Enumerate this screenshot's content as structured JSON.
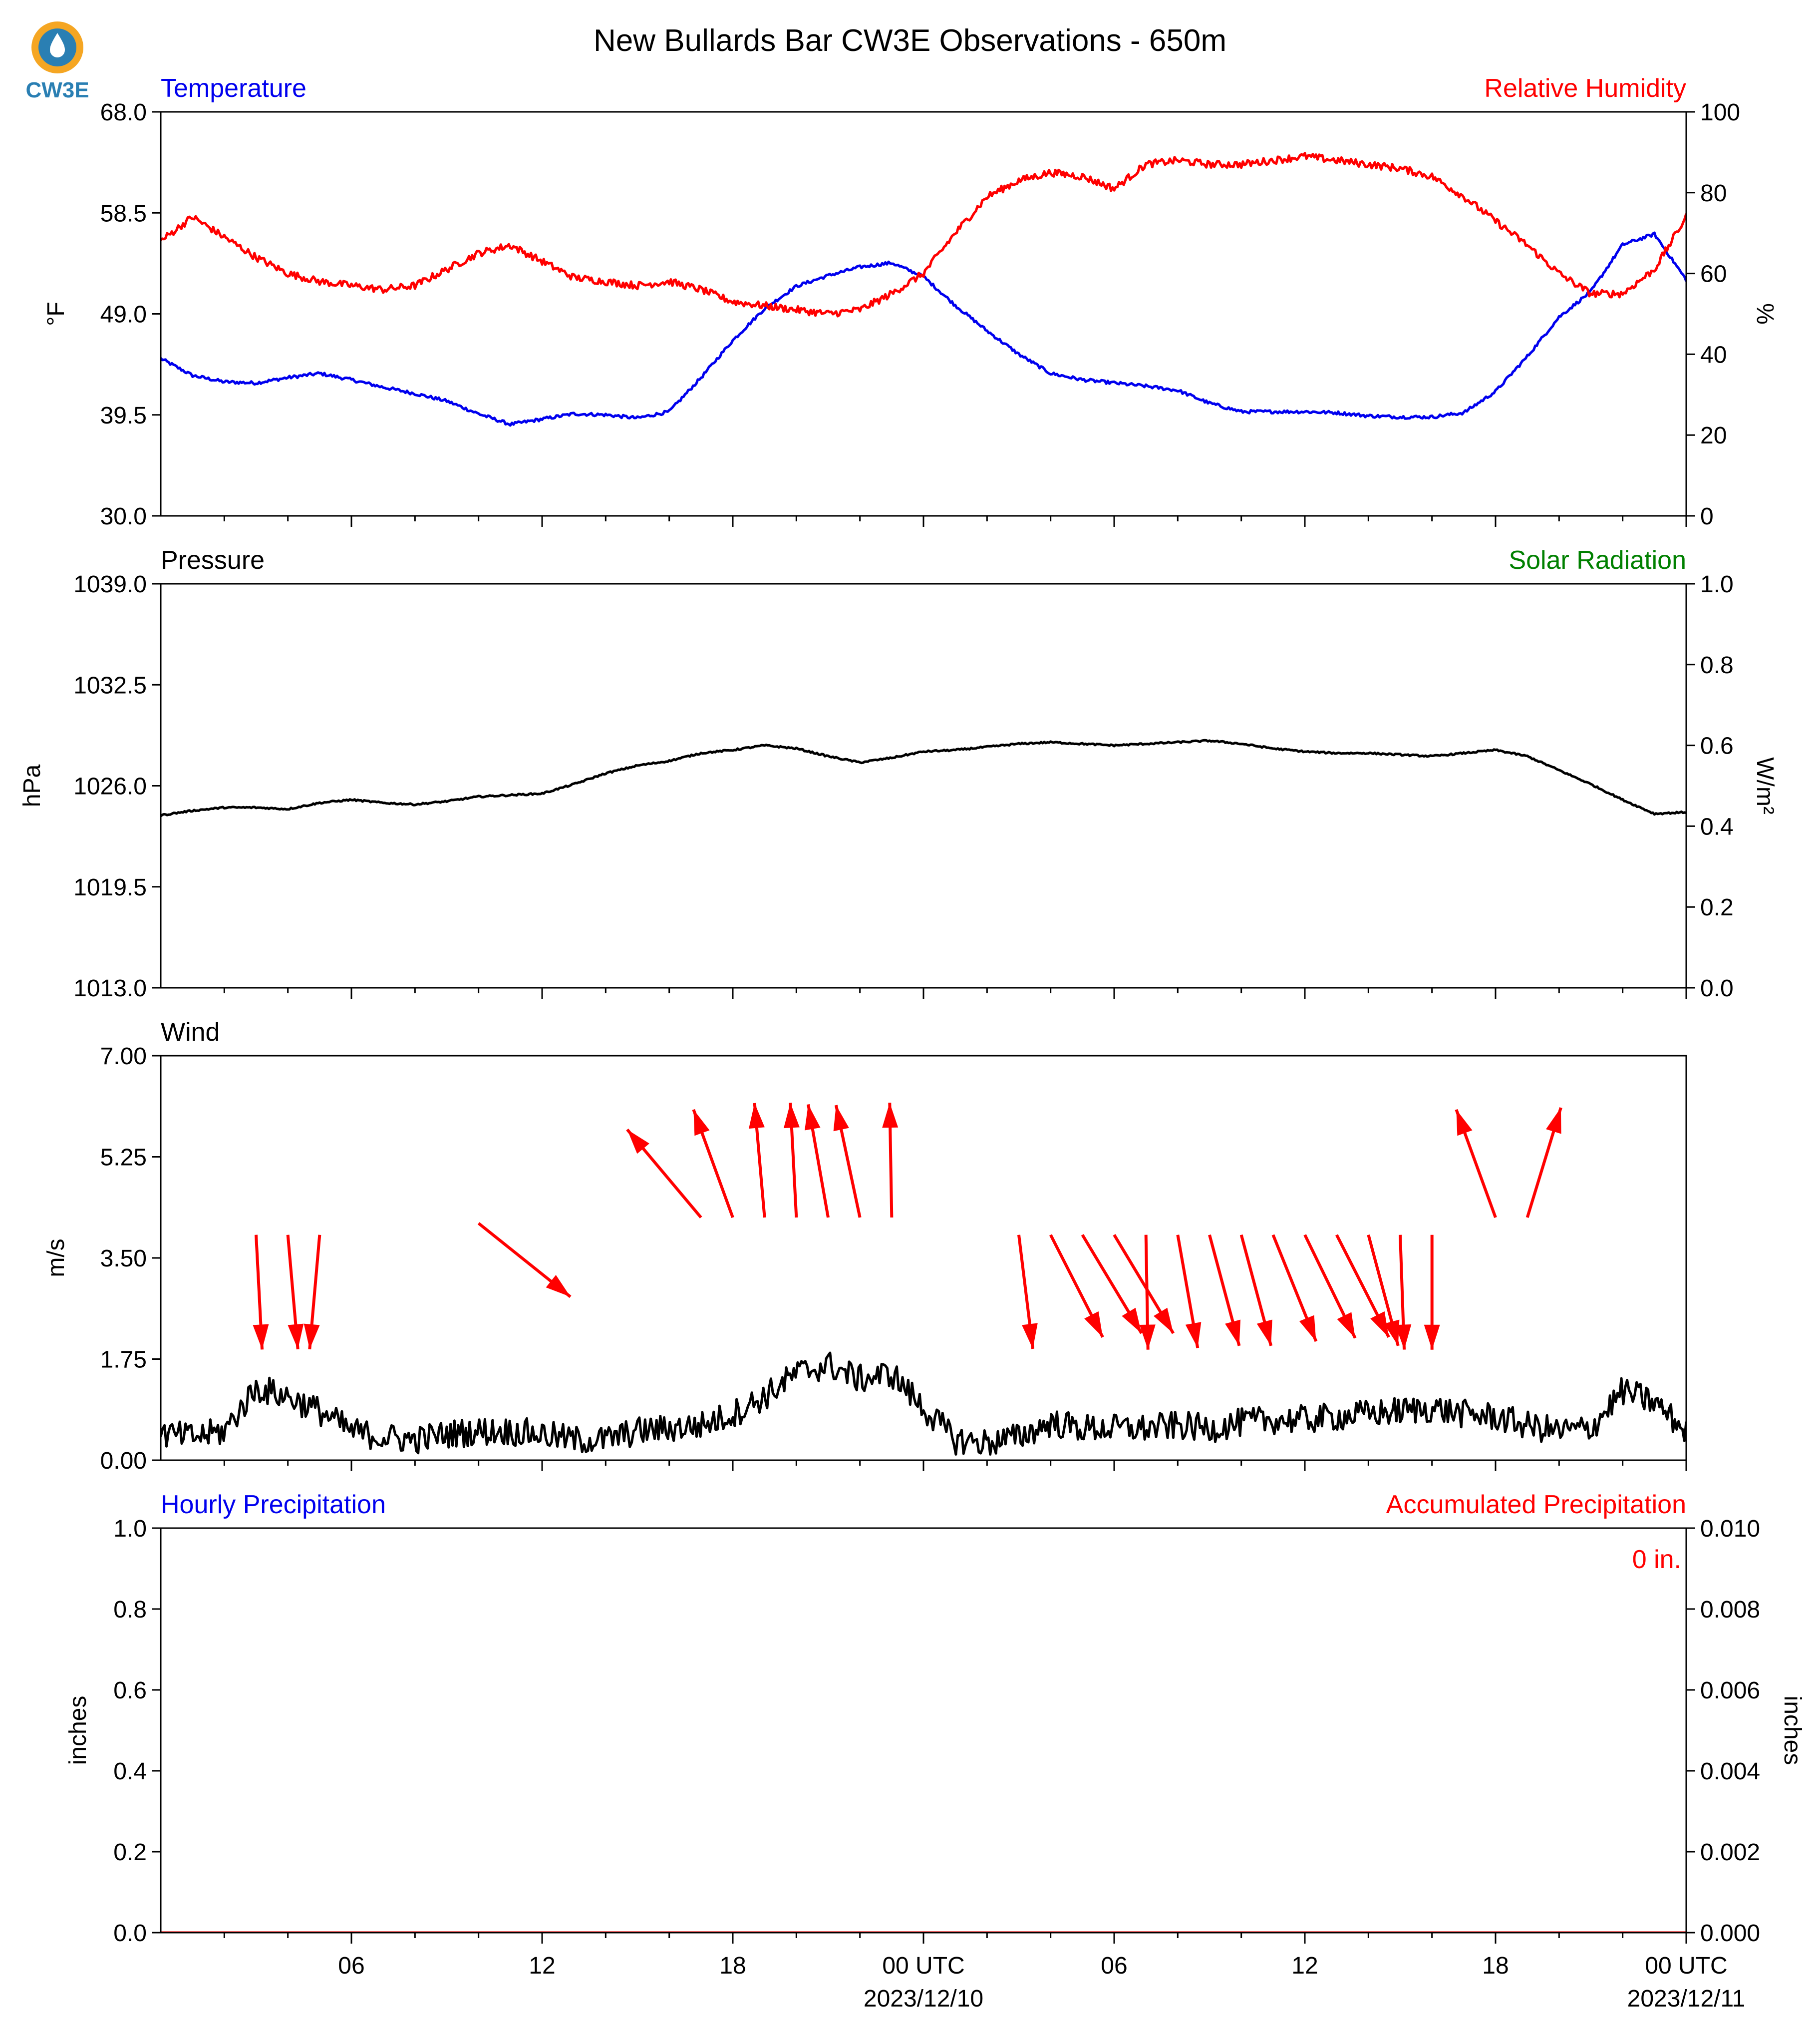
{
  "title": "New Bullards Bar CW3E Observations - 650m",
  "logo": {
    "text": "CW3E",
    "color": "#2a7fb3",
    "accent": "#f5a623"
  },
  "colors": {
    "temperature": "#0000ee",
    "humidity": "#ff0000",
    "solar": "#008000",
    "black": "#000000",
    "precip_hourly": "#0000ee",
    "precip_accum": "#ff0000"
  },
  "x_axis": {
    "tick_labels": [
      "06",
      "12",
      "18",
      "00 UTC",
      "06",
      "12",
      "18",
      "00 UTC"
    ],
    "date_labels": [
      "2023/12/10",
      "2023/12/11"
    ],
    "range_hours": [
      0,
      48
    ]
  },
  "chart_data": [
    {
      "type": "line",
      "panel": "temperature-humidity",
      "left_label": "Temperature",
      "right_label": "Relative Humidity",
      "ylabel_left": "°F",
      "ylabel_right": "%",
      "ylim_left": [
        30.0,
        68.0
      ],
      "ylim_right": [
        0,
        100
      ],
      "yticks_left": [
        "30.0",
        "39.5",
        "49.0",
        "58.5",
        "68.0"
      ],
      "yticks_right": [
        "0",
        "20",
        "40",
        "60",
        "80",
        "100"
      ],
      "series": [
        {
          "name": "Temperature",
          "axis": "left",
          "color": "#0000ee",
          "x": [
            0,
            1,
            2,
            3,
            4,
            5,
            6,
            7,
            8,
            9,
            10,
            11,
            12,
            13,
            14,
            15,
            16,
            17,
            18,
            19,
            20,
            21,
            22,
            23,
            24,
            25,
            26,
            27,
            28,
            29,
            30,
            31,
            32,
            33,
            34,
            35,
            36,
            37,
            38,
            39,
            40,
            41,
            42,
            43,
            44,
            45,
            46,
            47,
            48
          ],
          "y": [
            44.8,
            43.2,
            42.6,
            42.5,
            43.0,
            43.4,
            42.8,
            42.1,
            41.5,
            40.8,
            39.6,
            38.6,
            39.1,
            39.6,
            39.5,
            39.2,
            39.8,
            43.0,
            46.5,
            49.5,
            51.6,
            52.6,
            53.4,
            53.8,
            52.5,
            49.8,
            47.4,
            45.2,
            43.4,
            42.8,
            42.5,
            42.2,
            41.8,
            40.6,
            39.8,
            39.8,
            39.8,
            39.7,
            39.4,
            39.3,
            39.3,
            39.7,
            41.7,
            45.0,
            48.7,
            51.1,
            55.5,
            56.5,
            52.2
          ]
        },
        {
          "name": "Relative Humidity",
          "axis": "right",
          "color": "#ff0000",
          "x": [
            0,
            1,
            2,
            3,
            4,
            5,
            6,
            7,
            8,
            9,
            10,
            11,
            12,
            13,
            14,
            15,
            16,
            17,
            18,
            19,
            20,
            21,
            22,
            23,
            24,
            25,
            26,
            27,
            28,
            29,
            30,
            31,
            32,
            33,
            34,
            35,
            36,
            37,
            38,
            39,
            40,
            41,
            42,
            43,
            44,
            45,
            46,
            47,
            48
          ],
          "y": [
            68,
            74,
            69,
            64,
            60,
            58,
            57,
            56,
            57,
            61,
            65,
            67,
            63,
            59,
            58,
            57,
            58,
            56,
            53,
            52,
            51,
            50,
            51,
            55,
            60,
            70,
            79,
            83,
            85,
            84,
            81,
            87,
            88,
            87,
            87,
            88,
            89,
            88,
            87,
            86,
            84,
            79,
            73,
            67,
            60,
            55,
            55,
            61,
            74
          ]
        }
      ]
    },
    {
      "type": "line",
      "panel": "pressure-solar",
      "left_label": "Pressure",
      "right_label": "Solar Radiation",
      "ylabel_left": "hPa",
      "ylabel_right": "W/m²",
      "ylim_left": [
        1013.0,
        1039.0
      ],
      "ylim_right": [
        0.0,
        1.0
      ],
      "yticks_left": [
        "1013.0",
        "1019.5",
        "1026.0",
        "1032.5",
        "1039.0"
      ],
      "yticks_right": [
        "0.0",
        "0.2",
        "0.4",
        "0.6",
        "0.8",
        "1.0"
      ],
      "series": [
        {
          "name": "Pressure",
          "axis": "left",
          "color": "#000000",
          "x": [
            0,
            1,
            2,
            3,
            4,
            5,
            6,
            7,
            8,
            9,
            10,
            11,
            12,
            13,
            14,
            15,
            16,
            17,
            18,
            19,
            20,
            21,
            22,
            23,
            24,
            25,
            26,
            27,
            28,
            29,
            30,
            31,
            32,
            33,
            34,
            35,
            36,
            37,
            38,
            39,
            40,
            41,
            42,
            43,
            44,
            45,
            46,
            47,
            48
          ],
          "y": [
            1024.1,
            1024.4,
            1024.6,
            1024.6,
            1024.5,
            1024.9,
            1025.1,
            1024.9,
            1024.8,
            1025.0,
            1025.3,
            1025.4,
            1025.5,
            1026.1,
            1026.8,
            1027.3,
            1027.6,
            1028.1,
            1028.3,
            1028.6,
            1028.4,
            1027.9,
            1027.5,
            1027.8,
            1028.2,
            1028.3,
            1028.5,
            1028.7,
            1028.8,
            1028.7,
            1028.6,
            1028.7,
            1028.8,
            1028.9,
            1028.7,
            1028.4,
            1028.2,
            1028.1,
            1028.1,
            1028.0,
            1027.9,
            1028.1,
            1028.3,
            1027.9,
            1027.0,
            1026.1,
            1025.1,
            1024.2,
            1024.3
          ]
        }
      ]
    },
    {
      "type": "line",
      "panel": "wind",
      "left_label": "Wind",
      "ylabel_left": "m/s",
      "ylim_left": [
        0.0,
        7.0
      ],
      "yticks_left": [
        "0.00",
        "1.75",
        "3.50",
        "5.25",
        "7.00"
      ],
      "series": [
        {
          "name": "Wind",
          "axis": "left",
          "color": "#000000",
          "x": [
            0,
            1,
            2,
            3,
            4,
            5,
            6,
            7,
            8,
            9,
            10,
            11,
            12,
            13,
            14,
            15,
            16,
            17,
            18,
            19,
            20,
            21,
            22,
            23,
            24,
            25,
            26,
            27,
            28,
            29,
            30,
            31,
            32,
            33,
            34,
            35,
            36,
            37,
            38,
            39,
            40,
            41,
            42,
            43,
            44,
            45,
            46,
            47,
            48
          ],
          "y": [
            0.45,
            0.4,
            0.5,
            1.25,
            1.1,
            0.85,
            0.5,
            0.4,
            0.35,
            0.45,
            0.5,
            0.5,
            0.45,
            0.35,
            0.35,
            0.5,
            0.55,
            0.6,
            0.8,
            1.1,
            1.5,
            1.65,
            1.4,
            1.5,
            0.9,
            0.35,
            0.3,
            0.4,
            0.65,
            0.55,
            0.55,
            0.55,
            0.6,
            0.55,
            0.65,
            0.7,
            0.7,
            0.75,
            0.8,
            0.85,
            0.9,
            0.8,
            0.75,
            0.6,
            0.5,
            0.55,
            1.2,
            1.0,
            0.5
          ]
        },
        {
          "name": "Wind direction",
          "type": "vectors",
          "color": "#ff0000",
          "x": [
            3,
            4,
            5,
            10,
            17,
            18,
            19,
            20,
            21,
            22,
            23,
            27,
            28,
            29,
            30,
            31,
            32,
            33,
            34,
            35,
            36,
            37,
            38,
            39,
            40,
            42,
            43
          ],
          "angle": [
            -3,
            -5,
            5,
            -47,
            40,
            20,
            5,
            3,
            10,
            12,
            1,
            -7,
            -27,
            -31,
            -31,
            -1,
            -10,
            -15,
            -15,
            -22,
            -26,
            -27,
            -15,
            -2,
            0,
            20,
            -17
          ],
          "speed": [
            2.0,
            2.0,
            2.0,
            2.0,
            2.0,
            2.0,
            2.0,
            2.0,
            2.0,
            2.0,
            2.0,
            2.0,
            2.0,
            2.0,
            2.0,
            2.0,
            2.0,
            2.0,
            2.0,
            2.0,
            2.0,
            2.0,
            2.0,
            2.0,
            2.0,
            2.0,
            2.0
          ],
          "base_y": [
            3.9,
            3.9,
            3.9,
            4.1,
            4.2,
            4.2,
            4.2,
            4.2,
            4.2,
            4.2,
            4.2,
            3.9,
            3.9,
            3.9,
            3.9,
            3.9,
            3.9,
            3.9,
            3.9,
            3.9,
            3.9,
            3.9,
            3.9,
            3.9,
            3.9,
            4.2,
            4.2
          ]
        }
      ]
    },
    {
      "type": "line",
      "panel": "precipitation",
      "left_label": "Hourly Precipitation",
      "right_label": "Accumulated Precipitation",
      "ylabel_left": "inches",
      "ylabel_right": "inches",
      "ylim_left": [
        0.0,
        1.0
      ],
      "ylim_right": [
        0.0,
        0.01
      ],
      "yticks_left": [
        "0.0",
        "0.2",
        "0.4",
        "0.6",
        "0.8",
        "1.0"
      ],
      "yticks_right": [
        "0.000",
        "0.002",
        "0.004",
        "0.006",
        "0.008",
        "0.010"
      ],
      "annotation": "0 in.",
      "series": [
        {
          "name": "Hourly Precipitation",
          "axis": "left",
          "color": "#0000ee",
          "x": [
            0,
            48
          ],
          "y": [
            0,
            0
          ]
        },
        {
          "name": "Accumulated Precipitation",
          "axis": "right",
          "color": "#ff0000",
          "x": [
            0,
            48
          ],
          "y": [
            0,
            0
          ]
        }
      ]
    }
  ]
}
